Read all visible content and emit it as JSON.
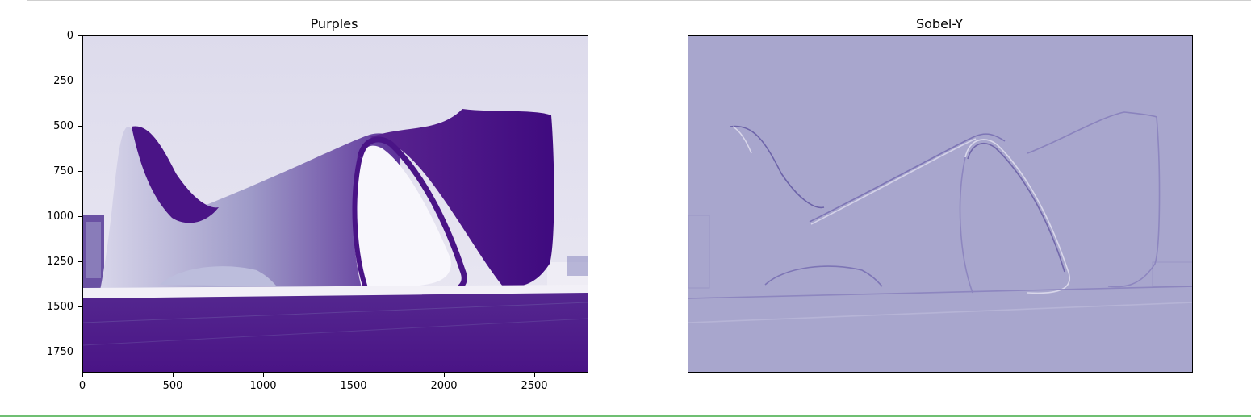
{
  "figure": {
    "left_panel": {
      "title": "Purples",
      "colormap": "Purples"
    },
    "right_panel": {
      "title": "Sobel-Y",
      "colormap": "Purples"
    },
    "y_ticks": [
      "0",
      "250",
      "500",
      "750",
      "1000",
      "1250",
      "1500",
      "1750"
    ],
    "x_ticks": [
      "0",
      "500",
      "1000",
      "1500",
      "2000",
      "2500"
    ],
    "colors": {
      "dark_purple": "#4a1486",
      "light_sky": "#e1dff0",
      "sobel_bg": "#a8a6cd"
    }
  }
}
